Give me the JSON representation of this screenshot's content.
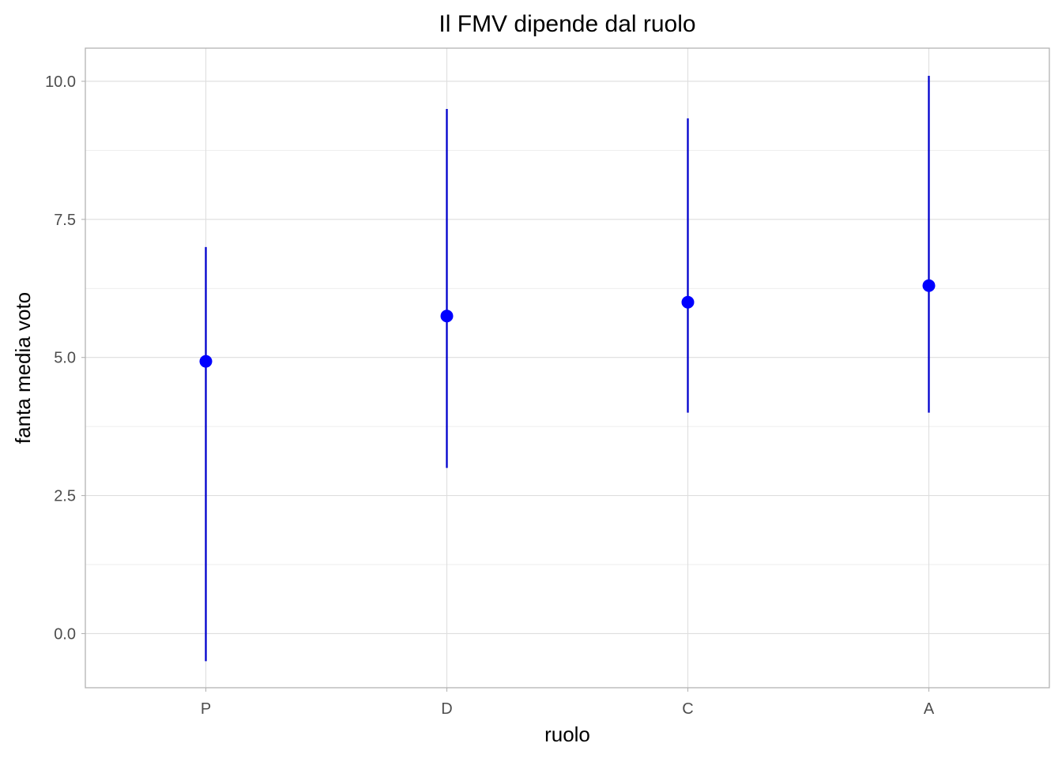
{
  "chart_data": {
    "type": "pointrange",
    "title": "Il FMV dipende dal ruolo",
    "xlabel": "ruolo",
    "ylabel": "fanta media voto",
    "categories": [
      "P",
      "D",
      "C",
      "A"
    ],
    "points": [
      {
        "category": "P",
        "y": 4.93,
        "ymin": -0.5,
        "ymax": 7.0
      },
      {
        "category": "D",
        "y": 5.75,
        "ymin": 3.0,
        "ymax": 9.5
      },
      {
        "category": "C",
        "y": 6.0,
        "ymin": 4.0,
        "ymax": 9.33
      },
      {
        "category": "A",
        "y": 6.3,
        "ymin": 4.0,
        "ymax": 10.1
      }
    ],
    "ylim": [
      -0.98,
      10.6
    ],
    "yticks": [
      0.0,
      2.5,
      5.0,
      7.5,
      10.0
    ],
    "ytick_labels": [
      "0.0",
      "2.5",
      "5.0",
      "7.5",
      "10.0"
    ],
    "grid": true,
    "theme": "light",
    "point_color": "#0000FF",
    "line_color": "#0000CD"
  }
}
